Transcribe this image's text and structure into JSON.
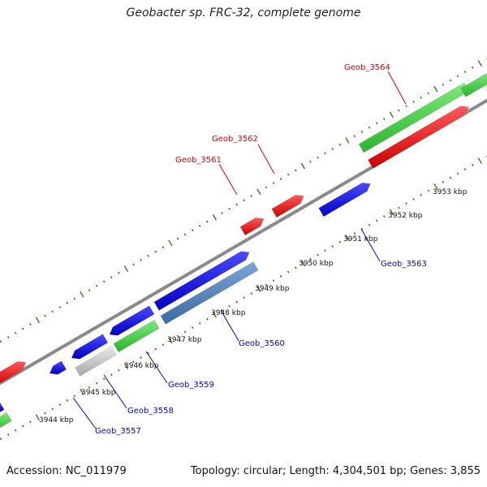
{
  "title": "Geobacter sp. FRC-32, complete genome",
  "footer": {
    "accession": "Accession: NC_011979",
    "stats": "Topology: circular; Length: 4,304,501 bp; Genes: 3,855"
  },
  "colors": {
    "backbone": "#8a8a8a",
    "tick": "#2e7d1e",
    "label_top": "#e00000",
    "label_bottom": "#0000d0",
    "green": "#3ccc3c",
    "red": "#e01818",
    "blue": "#1a1adc",
    "steel": "#4a7fb8",
    "grey": "#c8c8c8"
  },
  "kbp_labels": [
    "3944 kbp",
    "3945 kbp",
    "3946 kbp",
    "3947 kbp",
    "3948 kbp",
    "3949 kbp",
    "3950 kbp",
    "3951 kbp",
    "3952 kbp",
    "3953 kbp"
  ],
  "gene_labels_top": [
    "Geob_3561",
    "Geob_3562",
    "Geob_3564"
  ],
  "gene_labels_bottom": [
    "Geob_3557",
    "Geob_3558",
    "Geob_3559",
    "Geob_3560",
    "Geob_3563"
  ]
}
